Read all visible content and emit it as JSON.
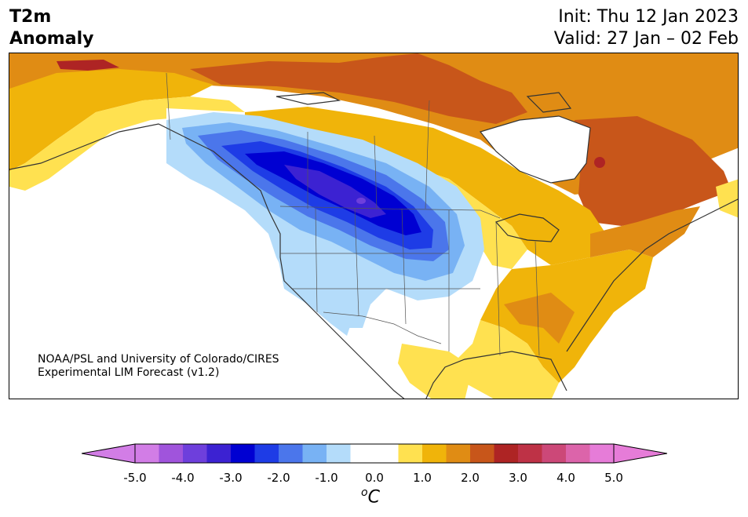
{
  "title": {
    "line1": "T2m",
    "line2": "Anomaly"
  },
  "init_line": "Init: Thu 12 Jan 2023",
  "valid_line": "Valid: 27 Jan – 02 Feb",
  "credit": {
    "line1": "NOAA/PSL and University of Colorado/CIRES",
    "line2": "Experimental LIM Forecast (v1.2)"
  },
  "colorbar": {
    "unit_base": "C",
    "unit_sup": "o",
    "ticks": [
      "-5.0",
      "-4.0",
      "-3.0",
      "-2.0",
      "-1.0",
      "0.0",
      "1.0",
      "2.0",
      "3.0",
      "4.0",
      "5.0"
    ],
    "colors": [
      "#d27de6",
      "#a054dc",
      "#6e3fdc",
      "#3c22d2",
      "#0000d2",
      "#1e3ce6",
      "#4b76eb",
      "#78b2f4",
      "#b4dcfa",
      "#ffffff",
      "#ffffff",
      "#ffe150",
      "#f0b40a",
      "#e08c14",
      "#c8561a",
      "#ae2424",
      "#be3246",
      "#cc4878",
      "#dc64aa",
      "#e67cd8"
    ],
    "extend_low_color": "#d27de6",
    "extend_high_color": "#e67cd8"
  },
  "map_colors": {
    "land_neutral": "#ffffff",
    "yellow": "#ffe150",
    "gold": "#f0b40a",
    "orange": "#e08c14",
    "dark_orange": "#c8561a",
    "red": "#ae2424",
    "pale_blue": "#b4dcfa",
    "light_blue": "#78b2f4",
    "mid_blue": "#4b76eb",
    "blue": "#1e3ce6",
    "deep_blue": "#0000d2",
    "indigo": "#3c22d2",
    "violet": "#6e3fdc"
  }
}
